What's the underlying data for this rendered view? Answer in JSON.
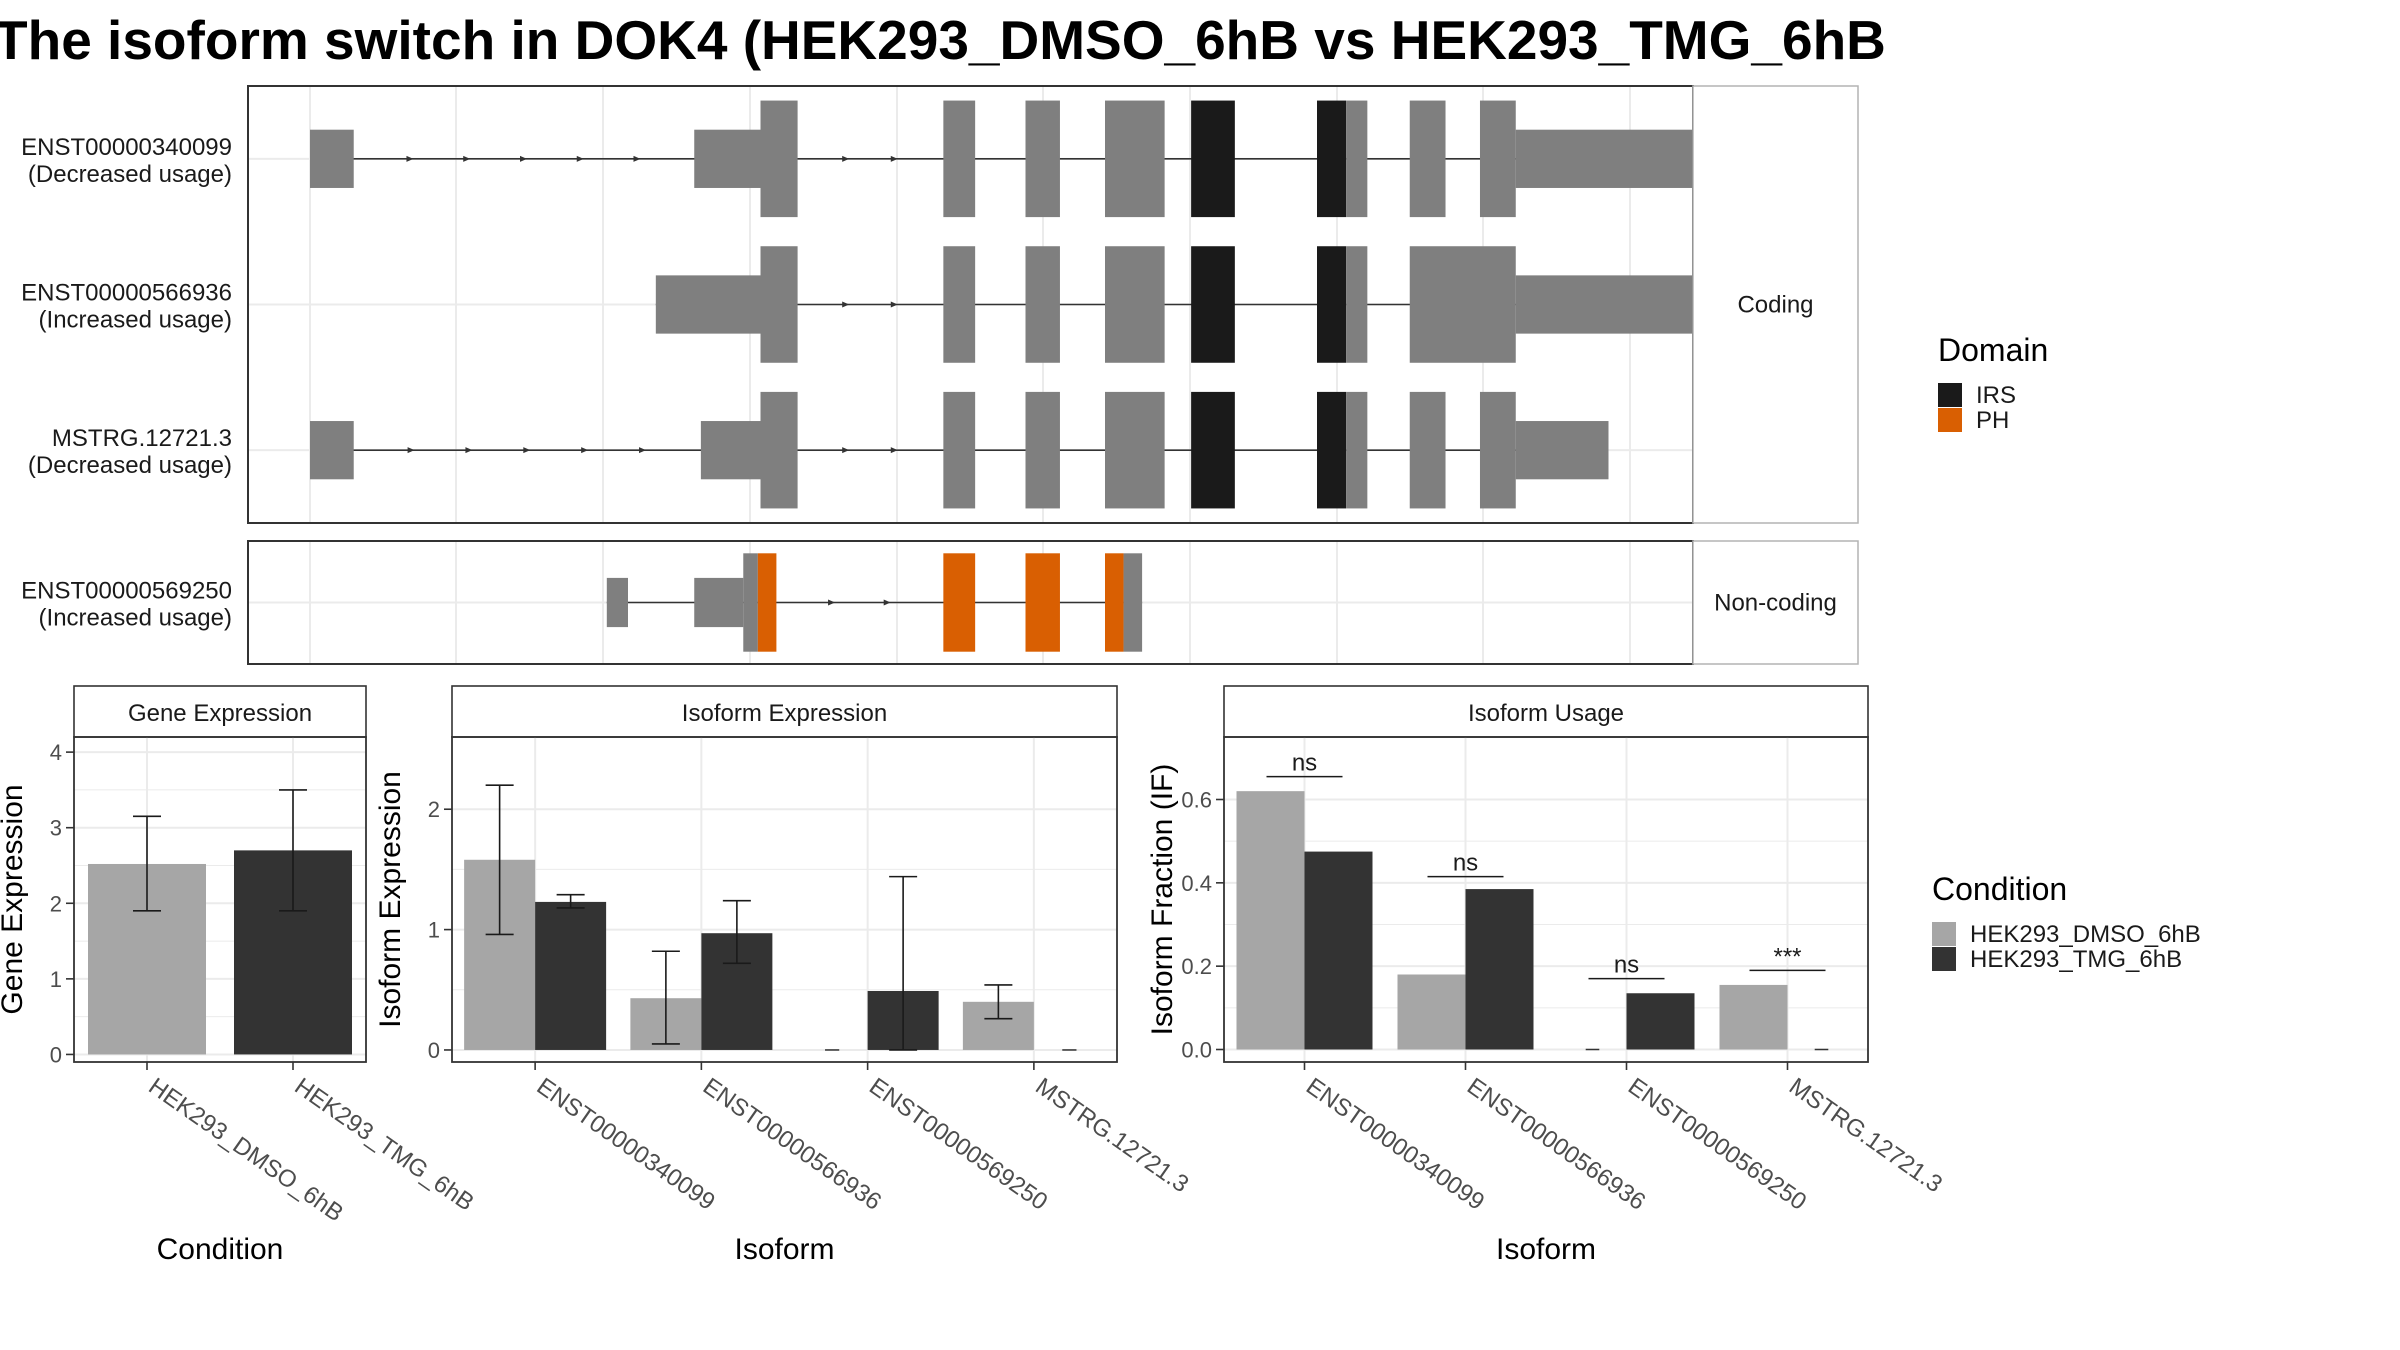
{
  "title": "The isoform switch in DOK4 (HEK293_DMSO_6hB vs HEK293_TMG_6hB",
  "colors": {
    "exon_none": "#7f7f7f",
    "IRS": "#1a1a1a",
    "PH": "#d95f02",
    "HEK293_DMSO_6hB": "#a6a6a6",
    "HEK293_TMG_6hB": "#333333",
    "grid": "#ebebeb",
    "strip_bg": "#ffffff",
    "panel_border": "#333333"
  },
  "domain_legend": {
    "title": "Domain",
    "items": [
      {
        "label": "IRS",
        "color": "#1a1a1a"
      },
      {
        "label": "PH",
        "color": "#d95f02"
      }
    ]
  },
  "condition_legend": {
    "title": "Condition",
    "items": [
      {
        "label": "HEK293_DMSO_6hB",
        "color": "#a6a6a6"
      },
      {
        "label": "HEK293_TMG_6hB",
        "color": "#333333"
      }
    ]
  },
  "chart_data": [
    {
      "type": "gene-structure",
      "genomic_range": [
        0,
        1000
      ],
      "groups": [
        {
          "strip": "Coding",
          "transcripts": [
            {
              "id": "ENST00000340099",
              "usage": "(Decreased usage)",
              "exons": [
                {
                  "start": 0,
                  "end": 33,
                  "type": "utr"
                },
                {
                  "start": 290,
                  "end": 340,
                  "type": "utr"
                },
                {
                  "start": 340,
                  "end": 368,
                  "type": "cds"
                },
                {
                  "start": 478,
                  "end": 502,
                  "type": "cds"
                },
                {
                  "start": 540,
                  "end": 566,
                  "type": "cds"
                },
                {
                  "start": 600,
                  "end": 645,
                  "type": "cds"
                },
                {
                  "start": 665,
                  "end": 698,
                  "type": "cds",
                  "domain": "IRS"
                },
                {
                  "start": 760,
                  "end": 782,
                  "type": "cds",
                  "domain": "IRS"
                },
                {
                  "start": 782,
                  "end": 798,
                  "type": "cds"
                },
                {
                  "start": 830,
                  "end": 857,
                  "type": "cds"
                },
                {
                  "start": 883,
                  "end": 910,
                  "type": "cds"
                },
                {
                  "start": 910,
                  "end": 1048,
                  "type": "utr"
                }
              ]
            },
            {
              "id": "ENST00000566936",
              "usage": "(Increased usage)",
              "exons": [
                {
                  "start": 261,
                  "end": 340,
                  "type": "utr"
                },
                {
                  "start": 340,
                  "end": 368,
                  "type": "cds"
                },
                {
                  "start": 478,
                  "end": 502,
                  "type": "cds"
                },
                {
                  "start": 540,
                  "end": 566,
                  "type": "cds"
                },
                {
                  "start": 600,
                  "end": 645,
                  "type": "cds"
                },
                {
                  "start": 665,
                  "end": 698,
                  "type": "cds",
                  "domain": "IRS"
                },
                {
                  "start": 760,
                  "end": 782,
                  "type": "cds",
                  "domain": "IRS"
                },
                {
                  "start": 782,
                  "end": 798,
                  "type": "cds"
                },
                {
                  "start": 830,
                  "end": 910,
                  "type": "cds"
                },
                {
                  "start": 910,
                  "end": 1063,
                  "type": "utr"
                }
              ]
            },
            {
              "id": "MSTRG.12721.3",
              "usage": "(Decreased usage)",
              "exons": [
                {
                  "start": 0,
                  "end": 33,
                  "type": "utr"
                },
                {
                  "start": 295,
                  "end": 340,
                  "type": "utr"
                },
                {
                  "start": 340,
                  "end": 368,
                  "type": "cds"
                },
                {
                  "start": 478,
                  "end": 502,
                  "type": "cds"
                },
                {
                  "start": 540,
                  "end": 566,
                  "type": "cds"
                },
                {
                  "start": 600,
                  "end": 645,
                  "type": "cds"
                },
                {
                  "start": 665,
                  "end": 698,
                  "type": "cds",
                  "domain": "IRS"
                },
                {
                  "start": 760,
                  "end": 782,
                  "type": "cds",
                  "domain": "IRS"
                },
                {
                  "start": 782,
                  "end": 798,
                  "type": "cds"
                },
                {
                  "start": 830,
                  "end": 857,
                  "type": "cds"
                },
                {
                  "start": 883,
                  "end": 910,
                  "type": "cds"
                },
                {
                  "start": 910,
                  "end": 980,
                  "type": "utr"
                }
              ]
            }
          ]
        },
        {
          "strip": "Non-coding",
          "transcripts": [
            {
              "id": "ENST00000569250",
              "usage": "(Increased usage)",
              "exons": [
                {
                  "start": 224,
                  "end": 240,
                  "type": "utr"
                },
                {
                  "start": 290,
                  "end": 327,
                  "type": "utr"
                },
                {
                  "start": 327,
                  "end": 338,
                  "type": "cds"
                },
                {
                  "start": 338,
                  "end": 352,
                  "type": "cds",
                  "domain": "PH"
                },
                {
                  "start": 478,
                  "end": 502,
                  "type": "cds",
                  "domain": "PH"
                },
                {
                  "start": 540,
                  "end": 566,
                  "type": "cds",
                  "domain": "PH"
                },
                {
                  "start": 600,
                  "end": 614,
                  "type": "cds",
                  "domain": "PH"
                },
                {
                  "start": 614,
                  "end": 628,
                  "type": "cds"
                }
              ]
            }
          ]
        }
      ]
    },
    {
      "type": "bar",
      "title": "Gene Expression",
      "xlabel": "Condition",
      "ylabel": "Gene Expression",
      "ylim": [
        -0.1,
        4.2
      ],
      "yticks": [
        0,
        1,
        2,
        3,
        4
      ],
      "categories": [
        "HEK293_DMSO_6hB",
        "HEK293_TMG_6hB"
      ],
      "series": [
        {
          "name": "HEK293_DMSO_6hB",
          "values": [
            2.52,
            null
          ],
          "err_low": [
            1.9,
            null
          ],
          "err_high": [
            3.15,
            null
          ]
        },
        {
          "name": "HEK293_TMG_6hB",
          "values": [
            null,
            2.7
          ],
          "err_low": [
            null,
            1.9
          ],
          "err_high": [
            null,
            3.5
          ]
        }
      ]
    },
    {
      "type": "bar",
      "title": "Isoform Expression",
      "xlabel": "Isoform",
      "ylabel": "Isoform Expression",
      "ylim": [
        -0.1,
        2.6
      ],
      "yticks": [
        0,
        1,
        2
      ],
      "categories": [
        "ENST00000340099",
        "ENST00000566936",
        "ENST00000569250",
        "MSTRG.12721.3"
      ],
      "series": [
        {
          "name": "HEK293_DMSO_6hB",
          "values": [
            1.58,
            0.43,
            0,
            0.4
          ],
          "err_low": [
            0.96,
            0.05,
            null,
            0.26
          ],
          "err_high": [
            2.2,
            0.82,
            null,
            0.54
          ]
        },
        {
          "name": "HEK293_TMG_6hB",
          "values": [
            1.23,
            0.97,
            0.49,
            0
          ],
          "err_low": [
            1.18,
            0.72,
            0.0,
            null
          ],
          "err_high": [
            1.29,
            1.24,
            1.44,
            null
          ]
        }
      ]
    },
    {
      "type": "bar",
      "title": "Isoform Usage",
      "xlabel": "Isoform",
      "ylabel": "Isoform Fraction (IF)",
      "ylim": [
        -0.03,
        0.75
      ],
      "yticks": [
        0.0,
        0.2,
        0.4,
        0.6
      ],
      "ytick_labels": [
        "0.0",
        "0.2",
        "0.4",
        "0.6"
      ],
      "categories": [
        "ENST00000340099",
        "ENST00000566936",
        "ENST00000569250",
        "MSTRG.12721.3"
      ],
      "series": [
        {
          "name": "HEK293_DMSO_6hB",
          "values": [
            0.62,
            0.18,
            0,
            0.155
          ]
        },
        {
          "name": "HEK293_TMG_6hB",
          "values": [
            0.475,
            0.385,
            0.135,
            0
          ]
        }
      ],
      "significance": [
        {
          "label": "ns",
          "y": 0.655
        },
        {
          "label": "ns",
          "y": 0.415
        },
        {
          "label": "ns",
          "y": 0.17
        },
        {
          "label": "***",
          "y": 0.19
        }
      ]
    }
  ]
}
